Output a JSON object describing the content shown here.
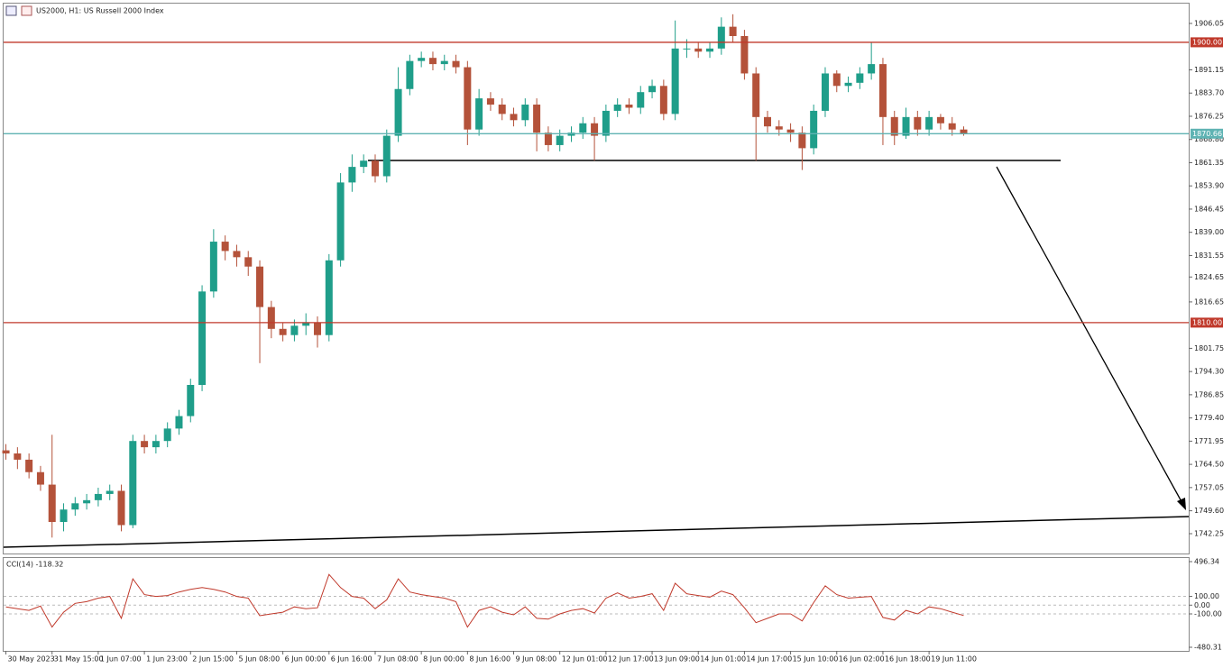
{
  "header": {
    "symbol_label": "US2000, H1:  US Russell 2000 Index"
  },
  "chart_data": [
    {
      "type": "candlestick",
      "up_color": "#1f9e8a",
      "down_color": "#b4523a",
      "open": [
        1769,
        1768,
        1766,
        1762,
        1758,
        1746,
        1750,
        1752,
        1753,
        1755,
        1756,
        1745,
        1772,
        1770,
        1772,
        1776,
        1780,
        1790,
        1820,
        1836,
        1833,
        1831,
        1828,
        1815,
        1808,
        1806,
        1809,
        1810,
        1806,
        1830,
        1855,
        1860,
        1862,
        1857,
        1870,
        1885,
        1894,
        1895,
        1893,
        1894,
        1892,
        1872,
        1882,
        1880,
        1877,
        1875,
        1880,
        1871,
        1867,
        1870,
        1871,
        1874,
        1870,
        1878,
        1880,
        1879,
        1884,
        1886,
        1877,
        1898,
        1898,
        1897,
        1898,
        1905,
        1902,
        1890,
        1876,
        1873,
        1872,
        1871,
        1866,
        1878,
        1890,
        1886,
        1887,
        1890,
        1893,
        1876,
        1870,
        1876,
        1872,
        1876,
        1874,
        1872
      ],
      "high": [
        1771,
        1770,
        1768,
        1764,
        1774,
        1752,
        1754,
        1755,
        1757,
        1758,
        1758,
        1774,
        1774,
        1774,
        1778,
        1782,
        1792,
        1822,
        1840,
        1838,
        1835,
        1833,
        1830,
        1817,
        1810,
        1811,
        1813,
        1812,
        1832,
        1858,
        1864,
        1864,
        1864,
        1872,
        1892,
        1896,
        1897,
        1897,
        1896,
        1896,
        1894,
        1885,
        1884,
        1882,
        1879,
        1882,
        1882,
        1873,
        1872,
        1873,
        1876,
        1876,
        1880,
        1882,
        1882,
        1886,
        1888,
        1888,
        1907,
        1901,
        1900,
        1900,
        1908,
        1909,
        1904,
        1892,
        1878,
        1875,
        1874,
        1873,
        1880,
        1892,
        1891,
        1889,
        1892,
        1900,
        1895,
        1878,
        1879,
        1878,
        1878,
        1877,
        1876,
        1873
      ],
      "low": [
        1766,
        1763,
        1760,
        1756,
        1741,
        1743,
        1748,
        1750,
        1751,
        1753,
        1743,
        1744,
        1768,
        1768,
        1770,
        1774,
        1778,
        1788,
        1818,
        1830,
        1828,
        1825,
        1797,
        1805,
        1804,
        1804,
        1806,
        1802,
        1804,
        1828,
        1852,
        1858,
        1855,
        1855,
        1868,
        1883,
        1892,
        1891,
        1891,
        1890,
        1867,
        1870,
        1878,
        1875,
        1873,
        1873,
        1865,
        1865,
        1865,
        1868,
        1869,
        1862,
        1868,
        1876,
        1877,
        1877,
        1882,
        1875,
        1875,
        1895,
        1895,
        1895,
        1896,
        1900,
        1888,
        1862,
        1871,
        1870,
        1868,
        1859,
        1864,
        1876,
        1884,
        1884,
        1885,
        1888,
        1867,
        1867,
        1869,
        1870,
        1870,
        1872,
        1870,
        1870
      ],
      "close": [
        1768,
        1766,
        1762,
        1758,
        1746,
        1750,
        1752,
        1753,
        1755,
        1756,
        1745,
        1772,
        1770,
        1772,
        1776,
        1780,
        1790,
        1820,
        1836,
        1833,
        1831,
        1828,
        1815,
        1808,
        1806,
        1809,
        1810,
        1806,
        1830,
        1855,
        1860,
        1862,
        1857,
        1870,
        1885,
        1894,
        1895,
        1893,
        1894,
        1892,
        1872,
        1882,
        1880,
        1877,
        1875,
        1880,
        1871,
        1867,
        1870,
        1871,
        1874,
        1870,
        1878,
        1880,
        1879,
        1884,
        1886,
        1877,
        1898,
        1898,
        1897,
        1898,
        1905,
        1902,
        1890,
        1876,
        1873,
        1872,
        1871,
        1866,
        1878,
        1890,
        1886,
        1887,
        1890,
        1893,
        1876,
        1870,
        1876,
        1872,
        1876,
        1874,
        1872,
        1870.66
      ],
      "xlim": [
        -0.2,
        102.5
      ],
      "ylim": [
        1735.88,
        1912.42
      ],
      "yticks": [
        {
          "value": 1906.05,
          "label": "1906.05"
        },
        {
          "value": 1891.15,
          "label": "1891.15"
        },
        {
          "value": 1883.7,
          "label": "1883.70"
        },
        {
          "value": 1876.25,
          "label": "1876.25"
        },
        {
          "value": 1868.8,
          "label": "1868.80"
        },
        {
          "value": 1861.35,
          "label": "1861.35"
        },
        {
          "value": 1853.9,
          "label": "1853.90"
        },
        {
          "value": 1846.45,
          "label": "1846.45"
        },
        {
          "value": 1839.0,
          "label": "1839.00"
        },
        {
          "value": 1831.55,
          "label": "1831.55"
        },
        {
          "value": 1824.65,
          "label": "1824.65"
        },
        {
          "value": 1816.65,
          "label": "1816.65"
        },
        {
          "value": 1801.75,
          "label": "1801.75"
        },
        {
          "value": 1794.3,
          "label": "1794.30"
        },
        {
          "value": 1786.85,
          "label": "1786.85"
        },
        {
          "value": 1779.4,
          "label": "1779.40"
        },
        {
          "value": 1771.95,
          "label": "1771.95"
        },
        {
          "value": 1764.5,
          "label": "1764.50"
        },
        {
          "value": 1757.05,
          "label": "1757.05"
        },
        {
          "value": 1749.6,
          "label": "1749.60"
        },
        {
          "value": 1742.25,
          "label": "1742.25"
        }
      ],
      "levels": [
        {
          "value": 1900,
          "label": "1900.00",
          "color": "#c0392b"
        },
        {
          "value": 1810,
          "label": "1810.00",
          "color": "#c0392b"
        },
        {
          "value": 1870.66,
          "label": "1870.66",
          "color": "#5fb3b3"
        }
      ],
      "xticks": [
        {
          "value": 0,
          "label": "30 May 2023"
        },
        {
          "value": 4,
          "label": "31 May 15:00"
        },
        {
          "value": 8,
          "label": "1 Jun 07:00"
        },
        {
          "value": 12,
          "label": "1 Jun 23:00"
        },
        {
          "value": 16,
          "label": "2 Jun 15:00"
        },
        {
          "value": 20,
          "label": "5 Jun 08:00"
        },
        {
          "value": 24,
          "label": "6 Jun 00:00"
        },
        {
          "value": 28,
          "label": "6 Jun 16:00"
        },
        {
          "value": 32,
          "label": "7 Jun 08:00"
        },
        {
          "value": 36,
          "label": "8 Jun 00:00"
        },
        {
          "value": 40,
          "label": "8 Jun 16:00"
        },
        {
          "value": 44,
          "label": "9 Jun 08:00"
        },
        {
          "value": 48,
          "label": "12 Jun 01:00"
        },
        {
          "value": 52,
          "label": "12 Jun 17:00"
        },
        {
          "value": 56,
          "label": "13 Jun 09:00"
        },
        {
          "value": 60,
          "label": "14 Jun 01:00"
        },
        {
          "value": 64,
          "label": "14 Jun 17:00"
        },
        {
          "value": 68,
          "label": "15 Jun 10:00"
        },
        {
          "value": 72,
          "label": "16 Jun 02:00"
        },
        {
          "value": 76,
          "label": "16 Jun 18:00"
        },
        {
          "value": 80,
          "label": "19 Jun 11:00"
        }
      ]
    },
    {
      "type": "line",
      "title": "CCI(14) -118.32",
      "color": "#c0392b",
      "values": [
        -20,
        -40,
        -60,
        -10,
        -250,
        -80,
        20,
        40,
        80,
        100,
        -150,
        300,
        120,
        100,
        110,
        150,
        180,
        200,
        180,
        150,
        100,
        80,
        -120,
        -100,
        -80,
        -20,
        -40,
        -30,
        350,
        200,
        100,
        80,
        -40,
        60,
        300,
        150,
        120,
        100,
        80,
        40,
        -250,
        -60,
        -20,
        -80,
        -110,
        -20,
        -150,
        -160,
        -100,
        -60,
        -40,
        -90,
        80,
        140,
        80,
        100,
        130,
        -60,
        250,
        130,
        110,
        90,
        160,
        120,
        -30,
        -200,
        -150,
        -100,
        -100,
        -180,
        30,
        220,
        120,
        80,
        90,
        100,
        -140,
        -170,
        -60,
        -100,
        -20,
        -40,
        -80,
        -118.32
      ],
      "xlim": [
        -0.2,
        102.5
      ],
      "ylim": [
        -521.43,
        537.46
      ],
      "yticks": [
        {
          "value": 496.34,
          "label": "496.34"
        },
        {
          "value": 100,
          "label": "100.00"
        },
        {
          "value": 0,
          "label": "0.00"
        },
        {
          "value": -100,
          "label": "-100.00"
        },
        {
          "value": -480.31,
          "label": "-480.31"
        }
      ]
    }
  ]
}
